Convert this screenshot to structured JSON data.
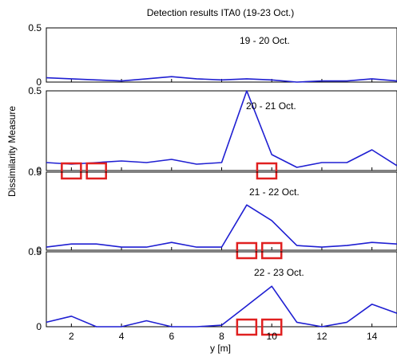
{
  "chart_data": {
    "type": "line",
    "title": "Detection results ITA0 (19-23 Oct.)",
    "xlabel": "y [m]",
    "ylabel": "Dissimilarity Measure",
    "xlim": [
      1,
      15
    ],
    "x_ticks": [
      2,
      4,
      6,
      8,
      10,
      12,
      14
    ],
    "x_tick_labels": [
      "2",
      "4",
      "6",
      "8",
      "10",
      "12",
      "14"
    ],
    "line_color": "#1f1fd2",
    "marker_color": "#e02020",
    "grid": false,
    "panels": [
      {
        "label": "19 - 20 Oct.",
        "ylim": [
          0,
          0.5
        ],
        "y_tick_labels": [
          "0",
          "0.5"
        ],
        "x": [
          1,
          2,
          3,
          4,
          5,
          6,
          7,
          8,
          9,
          10,
          11,
          12,
          13,
          14,
          15
        ],
        "y": [
          0.04,
          0.03,
          0.02,
          0.01,
          0.03,
          0.05,
          0.03,
          0.02,
          0.03,
          0.02,
          0.0,
          0.01,
          0.01,
          0.03,
          0.01
        ],
        "detections": []
      },
      {
        "label": "20 - 21 Oct.",
        "ylim": [
          0,
          0.5
        ],
        "y_tick_labels": [
          "0",
          "0.5"
        ],
        "x": [
          1,
          2,
          3,
          4,
          5,
          6,
          7,
          8,
          9,
          10,
          11,
          12,
          13,
          14,
          15
        ],
        "y": [
          0.05,
          0.04,
          0.05,
          0.06,
          0.05,
          0.07,
          0.04,
          0.05,
          0.5,
          0.1,
          0.02,
          0.05,
          0.05,
          0.13,
          0.03
        ],
        "detections": [
          2,
          3,
          9.8
        ]
      },
      {
        "label": "21 - 22 Oct.",
        "ylim": [
          0,
          0.5
        ],
        "y_tick_labels": [
          "0",
          "0.5"
        ],
        "x": [
          1,
          2,
          3,
          4,
          5,
          6,
          7,
          8,
          9,
          10,
          11,
          12,
          13,
          14,
          15
        ],
        "y": [
          0.02,
          0.04,
          0.04,
          0.02,
          0.02,
          0.05,
          0.02,
          0.02,
          0.29,
          0.19,
          0.03,
          0.02,
          0.03,
          0.05,
          0.04
        ],
        "detections": [
          9,
          10
        ]
      },
      {
        "label": "22 - 23 Oct.",
        "ylim": [
          0,
          0.5
        ],
        "y_tick_labels": [
          "0",
          "0.5"
        ],
        "x": [
          1,
          2,
          3,
          4,
          5,
          6,
          7,
          8,
          9,
          10,
          11,
          12,
          13,
          14,
          15
        ],
        "y": [
          0.03,
          0.07,
          0.0,
          0.0,
          0.04,
          0.0,
          0.0,
          0.01,
          0.14,
          0.27,
          0.03,
          0.0,
          0.03,
          0.15,
          0.09
        ],
        "detections": [
          9,
          10
        ]
      }
    ]
  }
}
